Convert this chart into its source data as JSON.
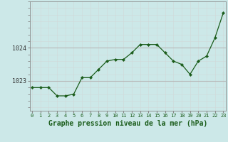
{
  "x": [
    0,
    1,
    2,
    3,
    4,
    5,
    6,
    7,
    8,
    9,
    10,
    11,
    12,
    13,
    14,
    15,
    16,
    17,
    18,
    19,
    20,
    21,
    22,
    23
  ],
  "y": [
    1022.8,
    1022.8,
    1022.8,
    1022.55,
    1022.55,
    1022.6,
    1023.1,
    1023.1,
    1023.35,
    1023.6,
    1023.65,
    1023.65,
    1023.85,
    1024.1,
    1024.1,
    1024.1,
    1023.85,
    1023.6,
    1023.5,
    1023.2,
    1023.6,
    1023.75,
    1024.3,
    1025.05
  ],
  "bg_color": "#cce8e8",
  "line_color": "#1a5c1a",
  "marker_color": "#1a5c1a",
  "grid_color_major": "#b8b8b8",
  "grid_color_minor": "#d0d8d8",
  "ylabel_ticks": [
    1023,
    1024
  ],
  "xlabel": "Graphe pression niveau de la mer (hPa)",
  "xlabel_fontsize": 7,
  "tick_fontsize": 6,
  "ylim_min": 1022.1,
  "ylim_max": 1025.4,
  "xlim_min": -0.3,
  "xlim_max": 23.3
}
